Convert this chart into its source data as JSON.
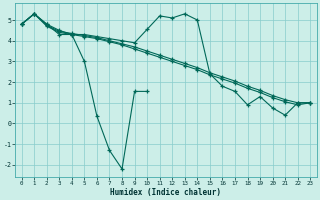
{
  "xlabel": "Humidex (Indice chaleur)",
  "bg_color": "#cceee8",
  "line_color": "#006858",
  "grid_color": "#88cccc",
  "spine_color": "#44aaaa",
  "xlim": [
    -0.5,
    23.5
  ],
  "ylim": [
    -2.6,
    5.8
  ],
  "xticks": [
    0,
    1,
    2,
    3,
    4,
    5,
    6,
    7,
    8,
    9,
    10,
    11,
    12,
    13,
    14,
    15,
    16,
    17,
    18,
    19,
    20,
    21,
    22,
    23
  ],
  "yticks": [
    -2,
    -1,
    0,
    1,
    2,
    3,
    4,
    5
  ],
  "line1_x": [
    0,
    1,
    2,
    3,
    4,
    5,
    6,
    7,
    8,
    9,
    10,
    11,
    12,
    13,
    14,
    15,
    16,
    17,
    18,
    19,
    20,
    21,
    22,
    23
  ],
  "line1_y": [
    4.8,
    5.3,
    4.8,
    4.3,
    4.3,
    4.3,
    4.2,
    4.1,
    4.0,
    3.9,
    4.55,
    5.2,
    5.1,
    5.3,
    5.0,
    2.4,
    1.8,
    1.55,
    0.9,
    1.3,
    0.75,
    0.4,
    1.0,
    1.0
  ],
  "line2_x": [
    0,
    1,
    2,
    3,
    4,
    5,
    6,
    7,
    8,
    9,
    10
  ],
  "line2_y": [
    4.8,
    5.3,
    4.8,
    4.5,
    4.3,
    3.0,
    0.35,
    -1.3,
    -2.2,
    1.55,
    1.55
  ],
  "line3_x": [
    0,
    1,
    2,
    3,
    4,
    5,
    6,
    7,
    8,
    9,
    10,
    11,
    12,
    13,
    14,
    15,
    16,
    17,
    18,
    19,
    20,
    21,
    22,
    23
  ],
  "line3_y": [
    4.8,
    5.3,
    4.75,
    4.45,
    4.35,
    4.25,
    4.15,
    4.0,
    3.85,
    3.7,
    3.5,
    3.3,
    3.1,
    2.9,
    2.7,
    2.45,
    2.25,
    2.05,
    1.8,
    1.6,
    1.35,
    1.15,
    1.0,
    1.0
  ],
  "line4_x": [
    0,
    1,
    2,
    3,
    4,
    5,
    6,
    7,
    8,
    9,
    10,
    11,
    12,
    13,
    14,
    15,
    16,
    17,
    18,
    19,
    20,
    21,
    22,
    23
  ],
  "line4_y": [
    4.8,
    5.3,
    4.7,
    4.4,
    4.3,
    4.2,
    4.1,
    3.95,
    3.8,
    3.6,
    3.4,
    3.2,
    3.0,
    2.8,
    2.6,
    2.35,
    2.15,
    1.95,
    1.7,
    1.5,
    1.25,
    1.05,
    0.9,
    1.0
  ]
}
